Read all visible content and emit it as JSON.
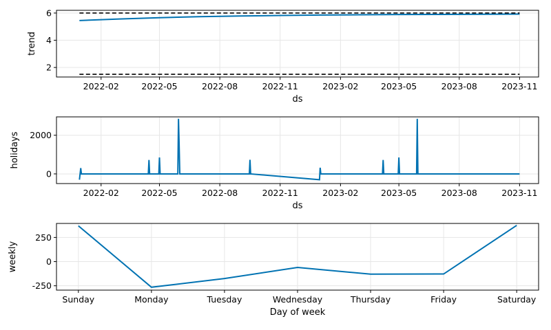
{
  "chart_data": [
    {
      "type": "line",
      "name": "trend-panel",
      "xlabel": "ds",
      "ylabel": "trend",
      "x_tick_labels": [
        "2022-02",
        "2022-05",
        "2022-08",
        "2022-11",
        "2023-02",
        "2023-05",
        "2023-08",
        "2023-11"
      ],
      "x_ticks": [
        "2022-02-01",
        "2022-05-01",
        "2022-08-01",
        "2022-11-01",
        "2023-02-01",
        "2023-05-01",
        "2023-08-01",
        "2023-11-01"
      ],
      "xlim": [
        "2021-11-25",
        "2023-11-30"
      ],
      "y_ticks": [
        2,
        4,
        6
      ],
      "ylim": [
        1.3,
        6.2
      ],
      "grid": true,
      "series": [
        {
          "x": [
            "2021-12-30",
            "2022-03-01",
            "2022-05-01",
            "2022-07-01",
            "2022-09-01",
            "2022-11-01",
            "2023-01-01",
            "2023-03-01",
            "2023-05-01",
            "2023-07-01",
            "2023-09-01",
            "2023-11-01"
          ],
          "y": [
            5.45,
            5.56,
            5.66,
            5.73,
            5.78,
            5.82,
            5.85,
            5.87,
            5.89,
            5.9,
            5.91,
            5.92
          ],
          "color": "#0072B2",
          "style": "solid"
        },
        {
          "x": [
            "2021-12-30",
            "2023-11-01"
          ],
          "y": [
            6.0,
            6.0
          ],
          "color": "#000000",
          "style": "dashed"
        },
        {
          "x": [
            "2021-12-30",
            "2023-11-01"
          ],
          "y": [
            1.5,
            1.5
          ],
          "color": "#000000",
          "style": "dashed"
        }
      ]
    },
    {
      "type": "line",
      "name": "holidays-panel",
      "xlabel": "ds",
      "ylabel": "holidays",
      "x_tick_labels": [
        "2022-02",
        "2022-05",
        "2022-08",
        "2022-11",
        "2023-02",
        "2023-05",
        "2023-08",
        "2023-11"
      ],
      "x_ticks": [
        "2022-02-01",
        "2022-05-01",
        "2022-08-01",
        "2022-11-01",
        "2023-02-01",
        "2023-05-01",
        "2023-08-01",
        "2023-11-01"
      ],
      "xlim": [
        "2021-11-25",
        "2023-11-30"
      ],
      "y_ticks": [
        0,
        2000
      ],
      "ylim": [
        -500,
        2950
      ],
      "grid": true,
      "series": [
        {
          "x": [
            "2021-12-30",
            "2022-01-01",
            "2022-01-02",
            "2022-04-14",
            "2022-04-15",
            "2022-04-16",
            "2022-04-30",
            "2022-05-01",
            "2022-05-02",
            "2022-05-29",
            "2022-05-30",
            "2022-05-31",
            "2022-06-01",
            "2022-09-15",
            "2022-09-16",
            "2022-09-17",
            "2022-12-31",
            "2023-01-01",
            "2023-01-02",
            "2023-04-06",
            "2023-04-07",
            "2023-04-08",
            "2023-04-30",
            "2023-05-01",
            "2023-05-02",
            "2023-05-28",
            "2023-05-29",
            "2023-05-30",
            "2023-11-01"
          ],
          "y": [
            -300,
            300,
            0,
            0,
            720,
            0,
            0,
            850,
            0,
            0,
            2850,
            1500,
            0,
            0,
            730,
            0,
            -300,
            320,
            0,
            0,
            720,
            0,
            0,
            850,
            0,
            0,
            2850,
            0,
            0
          ],
          "color": "#0072B2",
          "style": "solid"
        }
      ]
    },
    {
      "type": "line",
      "name": "weekly-panel",
      "xlabel": "Day of week",
      "ylabel": "weekly",
      "categories": [
        "Sunday",
        "Monday",
        "Tuesday",
        "Wednesday",
        "Thursday",
        "Friday",
        "Saturday"
      ],
      "values": [
        370,
        -265,
        -175,
        -60,
        -130,
        -128,
        375
      ],
      "y_ticks": [
        -250,
        0,
        250
      ],
      "ylim": [
        -295,
        395
      ],
      "grid": true,
      "color": "#0072B2"
    }
  ]
}
